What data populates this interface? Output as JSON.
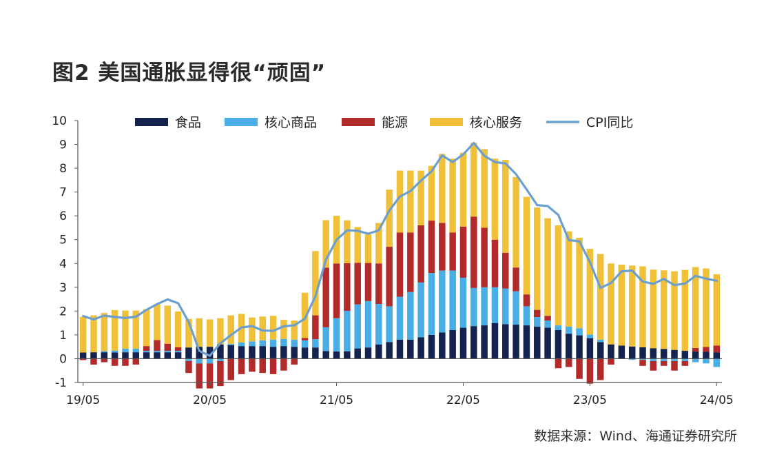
{
  "title": "图2  美国通胀显得很“顽固”",
  "source": "数据来源：Wind、海通证券研究所",
  "colors": {
    "food": "#14234d",
    "core_goods": "#4aaee6",
    "energy": "#b22a2a",
    "core_services": "#f1c039",
    "cpi": "#6a9fcf"
  },
  "chart_data": {
    "type": "bar",
    "stacked": true,
    "title": "",
    "xlabel": "",
    "ylabel": "",
    "ylim": [
      -1,
      10
    ],
    "yticks": [
      "-1",
      "0",
      "1",
      "2",
      "3",
      "4",
      "5",
      "6",
      "7",
      "8",
      "9",
      "10"
    ],
    "xticks": [
      "19/05",
      "20/05",
      "21/05",
      "22/05",
      "23/05",
      "24/05"
    ],
    "legend_position": "top",
    "categories": [
      "19/05",
      "19/06",
      "19/07",
      "19/08",
      "19/09",
      "19/10",
      "19/11",
      "19/12",
      "20/01",
      "20/02",
      "20/03",
      "20/04",
      "20/05",
      "20/06",
      "20/07",
      "20/08",
      "20/09",
      "20/10",
      "20/11",
      "20/12",
      "21/01",
      "21/02",
      "21/03",
      "21/04",
      "21/05",
      "21/06",
      "21/07",
      "21/08",
      "21/09",
      "21/10",
      "21/11",
      "21/12",
      "22/01",
      "22/02",
      "22/03",
      "22/04",
      "22/05",
      "22/06",
      "22/07",
      "22/08",
      "22/09",
      "22/10",
      "22/11",
      "22/12",
      "23/01",
      "23/02",
      "23/03",
      "23/04",
      "23/05",
      "23/06",
      "23/07",
      "23/08",
      "23/09",
      "23/10",
      "23/11",
      "23/12",
      "24/01",
      "24/02",
      "24/03",
      "24/04",
      "24/05"
    ],
    "series": [
      {
        "name": "食品",
        "kind": "bar",
        "values": [
          0.26,
          0.27,
          0.27,
          0.26,
          0.27,
          0.27,
          0.27,
          0.27,
          0.27,
          0.27,
          0.47,
          0.5,
          0.5,
          0.6,
          0.57,
          0.53,
          0.53,
          0.53,
          0.5,
          0.53,
          0.5,
          0.47,
          0.47,
          0.32,
          0.3,
          0.31,
          0.43,
          0.47,
          0.6,
          0.7,
          0.8,
          0.8,
          0.9,
          1.0,
          1.1,
          1.2,
          1.3,
          1.37,
          1.4,
          1.5,
          1.45,
          1.43,
          1.4,
          1.35,
          1.3,
          1.2,
          1.05,
          0.98,
          0.86,
          0.7,
          0.6,
          0.55,
          0.51,
          0.48,
          0.44,
          0.41,
          0.37,
          0.33,
          0.3,
          0.29,
          0.27
        ]
      },
      {
        "name": "核心商品",
        "kind": "bar",
        "values": [
          0.0,
          0.0,
          0.05,
          0.08,
          0.15,
          0.15,
          0.06,
          0.06,
          0.06,
          0.06,
          -0.1,
          -0.2,
          -0.2,
          -0.1,
          0.05,
          0.15,
          0.2,
          0.24,
          0.3,
          0.3,
          0.3,
          0.3,
          0.35,
          1.0,
          1.4,
          1.7,
          1.85,
          1.95,
          1.7,
          1.5,
          1.8,
          2.0,
          2.3,
          2.6,
          2.6,
          2.5,
          2.1,
          1.6,
          1.6,
          1.5,
          1.5,
          1.4,
          0.8,
          0.4,
          0.3,
          0.2,
          0.3,
          0.3,
          0.15,
          0.1,
          0.0,
          0.0,
          -0.05,
          -0.05,
          -0.1,
          -0.1,
          -0.1,
          -0.1,
          -0.15,
          -0.2,
          -0.35
        ]
      },
      {
        "name": "能源",
        "kind": "bar",
        "values": [
          -0.06,
          -0.25,
          -0.15,
          -0.3,
          -0.3,
          -0.25,
          0.2,
          0.45,
          0.3,
          0.15,
          -0.5,
          -1.05,
          -1.05,
          -1.05,
          -0.9,
          -0.65,
          -0.55,
          -0.6,
          -0.65,
          -0.5,
          -0.25,
          0.1,
          1.0,
          2.5,
          2.3,
          2.0,
          1.75,
          1.6,
          1.7,
          2.5,
          2.7,
          2.5,
          2.4,
          2.2,
          2.0,
          1.6,
          2.15,
          3.0,
          2.5,
          2.0,
          1.5,
          1.0,
          0.5,
          0.3,
          0.2,
          -0.4,
          -0.35,
          -0.85,
          -1.05,
          -0.9,
          -0.25,
          0.0,
          0.0,
          -0.25,
          -0.4,
          -0.2,
          -0.4,
          -0.2,
          0.15,
          0.2,
          0.28
        ]
      },
      {
        "name": "核心服务",
        "kind": "bar",
        "values": [
          1.5,
          1.55,
          1.6,
          1.7,
          1.6,
          1.6,
          1.55,
          1.5,
          1.6,
          1.5,
          1.2,
          1.2,
          1.15,
          1.1,
          1.2,
          1.2,
          1.0,
          1.0,
          1.0,
          0.8,
          0.8,
          1.9,
          2.7,
          2.0,
          2.0,
          1.8,
          1.5,
          1.2,
          1.7,
          2.4,
          2.6,
          2.6,
          2.3,
          2.3,
          2.9,
          3.1,
          3.1,
          3.1,
          3.3,
          3.4,
          3.9,
          3.8,
          4.1,
          4.3,
          4.1,
          4.2,
          4.0,
          3.8,
          3.6,
          3.6,
          3.4,
          3.4,
          3.4,
          3.4,
          3.3,
          3.3,
          3.3,
          3.4,
          3.4,
          3.3,
          3.0
        ]
      },
      {
        "name": "CPI同比",
        "kind": "line",
        "values": [
          1.79,
          1.65,
          1.81,
          1.75,
          1.71,
          1.76,
          2.05,
          2.29,
          2.49,
          2.33,
          1.54,
          0.33,
          0.12,
          0.65,
          0.99,
          1.31,
          1.37,
          1.18,
          1.17,
          1.36,
          1.4,
          1.68,
          2.62,
          4.16,
          4.99,
          5.39,
          5.37,
          5.25,
          5.39,
          6.22,
          6.81,
          7.04,
          7.48,
          7.87,
          8.54,
          8.26,
          8.58,
          9.06,
          8.52,
          8.26,
          8.2,
          7.75,
          7.11,
          6.45,
          6.41,
          6.04,
          4.98,
          4.93,
          4.05,
          2.97,
          3.18,
          3.67,
          3.7,
          3.24,
          3.14,
          3.35,
          3.09,
          3.15,
          3.48,
          3.36,
          3.27
        ]
      }
    ]
  }
}
